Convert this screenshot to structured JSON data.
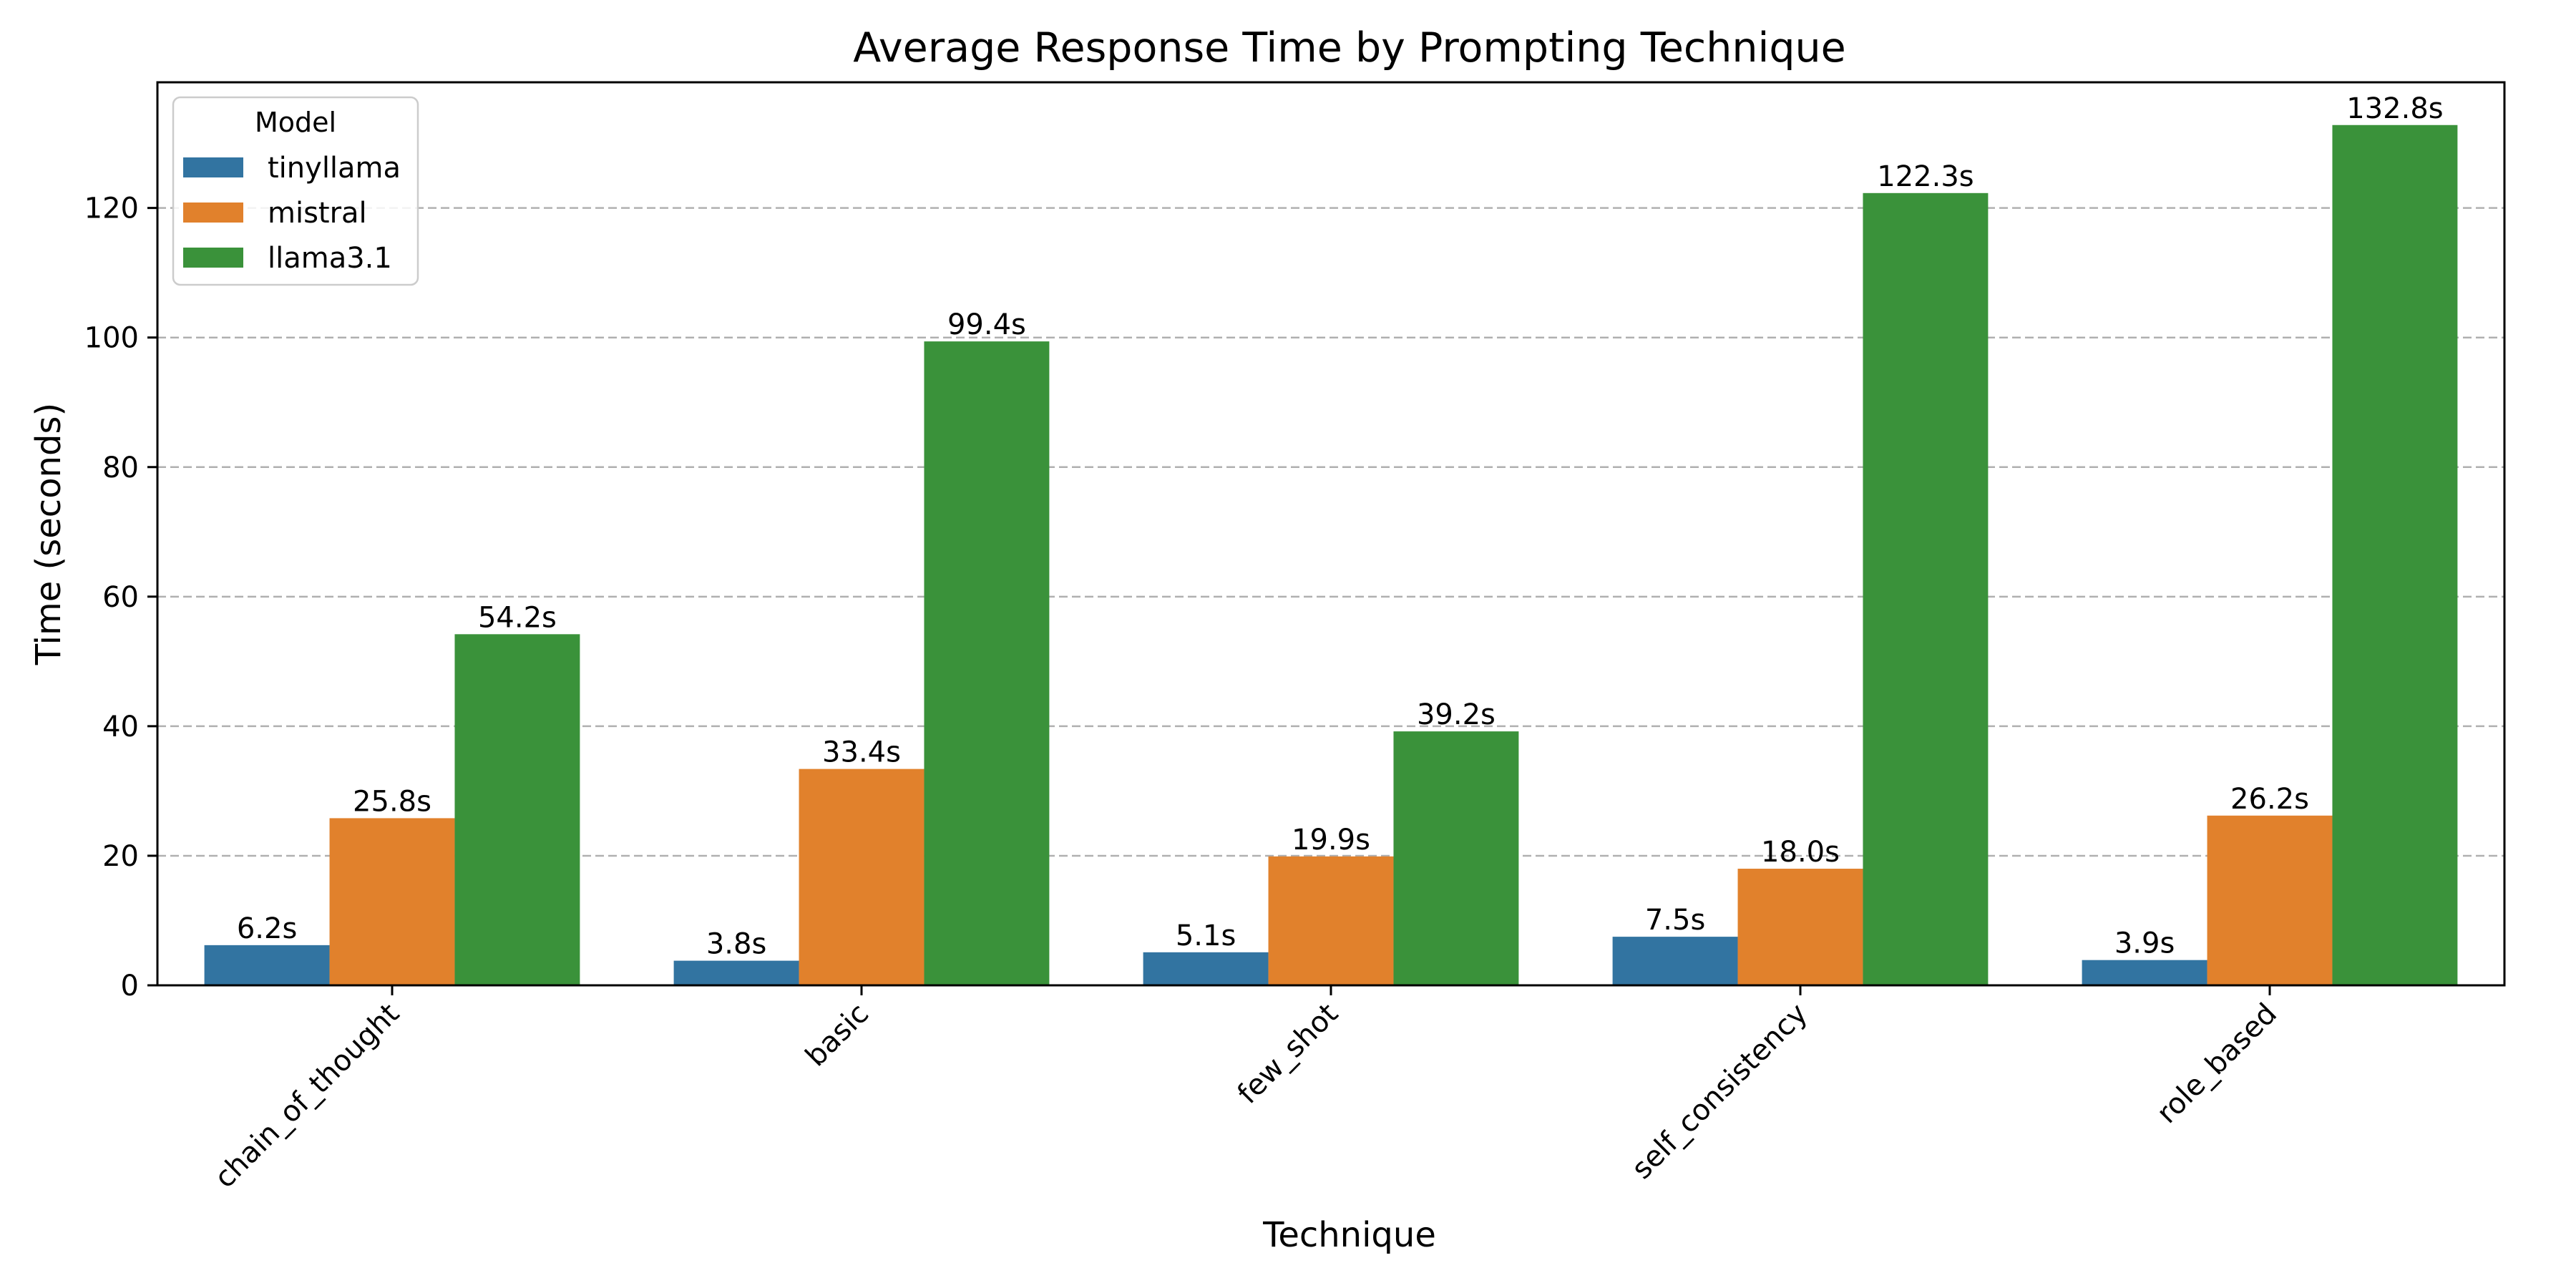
{
  "chart_data": {
    "type": "bar",
    "title": "Average Response Time by Prompting Technique",
    "xlabel": "Technique",
    "ylabel": "Time (seconds)",
    "categories": [
      "chain_of_thought",
      "basic",
      "few_shot",
      "self_consistency",
      "role_based"
    ],
    "series": [
      {
        "name": "tinyllama",
        "color": "#3274a1",
        "values": [
          6.2,
          3.8,
          5.1,
          7.5,
          3.9
        ],
        "labels": [
          "6.2s",
          "3.8s",
          "5.1s",
          "7.5s",
          "3.9s"
        ]
      },
      {
        "name": "mistral",
        "color": "#e1812c",
        "values": [
          25.8,
          33.4,
          19.9,
          18.0,
          26.2
        ],
        "labels": [
          "25.8s",
          "33.4s",
          "19.9s",
          "18.0s",
          "26.2s"
        ]
      },
      {
        "name": "llama3.1",
        "color": "#3a923a",
        "values": [
          54.2,
          99.4,
          39.2,
          122.3,
          132.8
        ],
        "labels": [
          "54.2s",
          "99.4s",
          "39.2s",
          "122.3s",
          "132.8s"
        ]
      }
    ],
    "yticks": [
      "0",
      "20",
      "40",
      "60",
      "80",
      "100",
      "120"
    ],
    "ylim": [
      0,
      139.4
    ],
    "grid": "y dashed",
    "legend": {
      "title": "Model",
      "placement": "top-left"
    }
  }
}
